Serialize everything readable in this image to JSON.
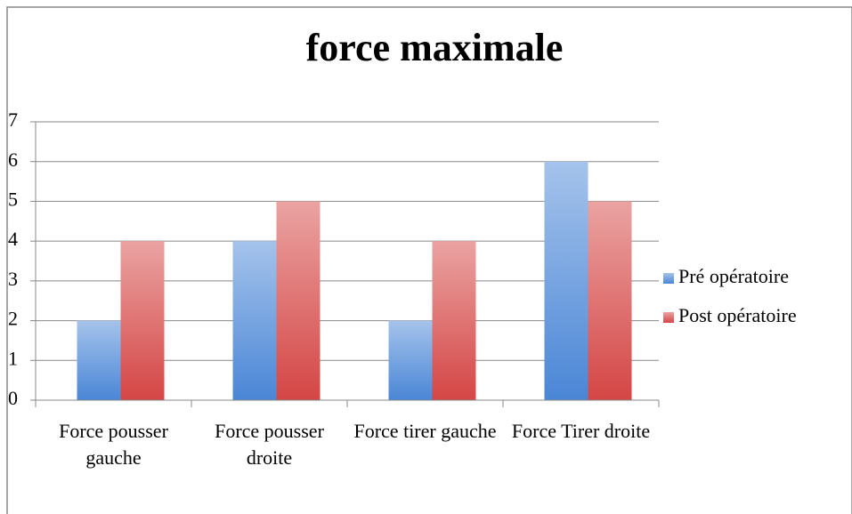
{
  "chart_data": {
    "type": "bar",
    "title": "force maximale",
    "categories": [
      "Force pousser gauche",
      "Force pousser droite",
      "Force tirer gauche",
      "Force Tirer droite"
    ],
    "series": [
      {
        "name": "Pré opératoire",
        "color": "#4a86d6",
        "values": [
          2,
          4,
          2,
          6
        ]
      },
      {
        "name": "Post opératoire",
        "color": "#d44645",
        "values": [
          4,
          5,
          4,
          5
        ]
      }
    ],
    "ylim": [
      0,
      7
    ],
    "yticks": [
      0,
      1,
      2,
      3,
      4,
      5,
      6,
      7
    ],
    "grid": true,
    "legend": "right"
  }
}
